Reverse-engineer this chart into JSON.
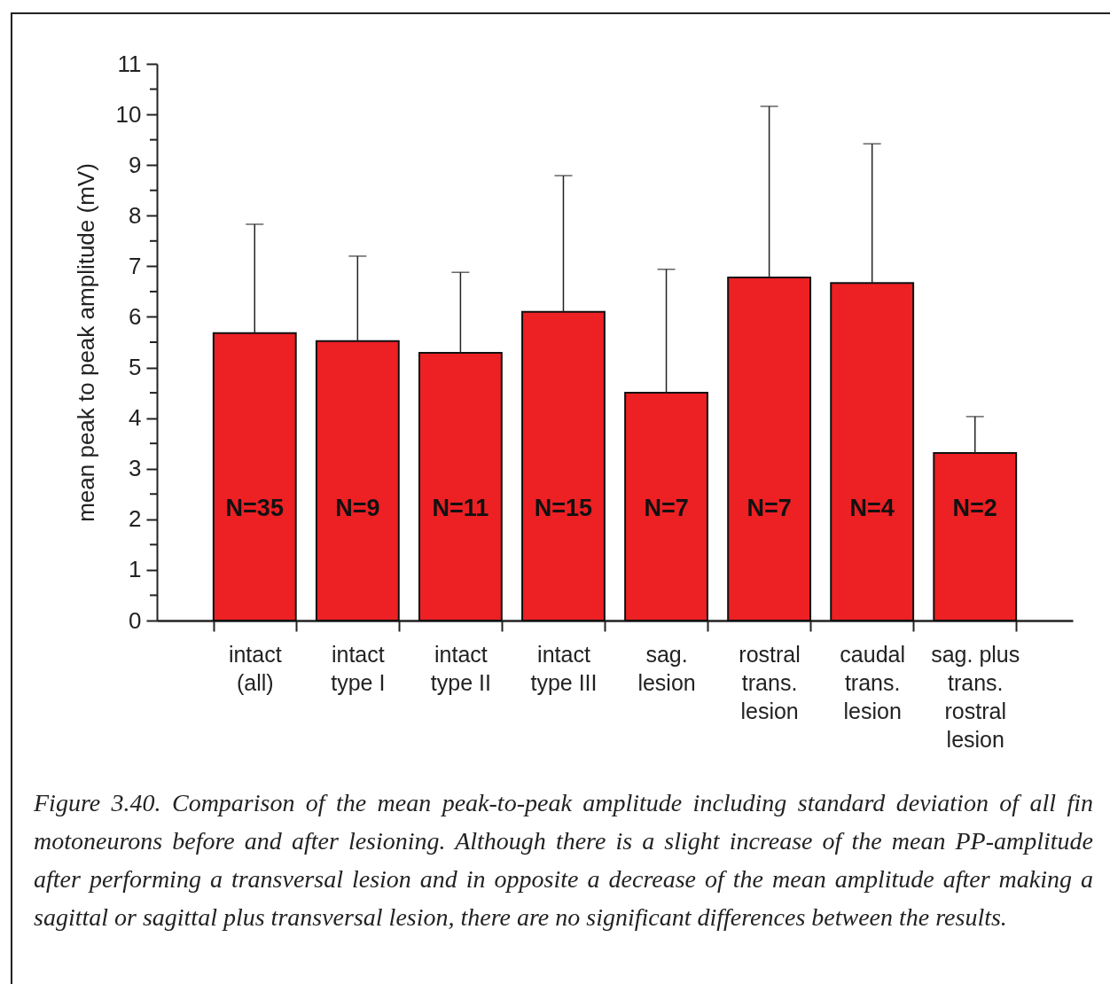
{
  "chart_data": {
    "type": "bar",
    "ylabel": "mean peak to peak amplitude (mV)",
    "categories": [
      "intact\n(all)",
      "intact\ntype I",
      "intact\ntype II",
      "intact\ntype III",
      "sag.\nlesion",
      "rostral\ntrans.\nlesion",
      "caudal\ntrans.\nlesion",
      "sag. plus\ntrans.\nrostral\nlesion"
    ],
    "values": [
      5.68,
      5.52,
      5.29,
      6.1,
      4.5,
      6.78,
      6.67,
      3.31
    ],
    "errors": [
      [
        5.68,
        7.83
      ],
      [
        5.52,
        7.2
      ],
      [
        5.29,
        6.88
      ],
      [
        6.1,
        8.79
      ],
      [
        4.5,
        6.94
      ],
      [
        6.78,
        10.16
      ],
      [
        6.67,
        9.42
      ],
      [
        3.31,
        4.03
      ]
    ],
    "color": "#ed2024",
    "ylim": [
      0,
      11
    ],
    "yticks": [
      0,
      {
        "value": 0.5,
        "label": null
      },
      1,
      {
        "value": 1.5,
        "label": null
      },
      2,
      {
        "value": 2.5,
        "label": null
      },
      3,
      {
        "value": 3.5,
        "label": null
      },
      4,
      {
        "value": 4.5,
        "label": null
      },
      5,
      {
        "value": 5.5,
        "label": null
      },
      6,
      {
        "value": 6.5,
        "label": null
      },
      7,
      {
        "value": 7.5,
        "label": null
      },
      8,
      {
        "value": 8.5,
        "label": null
      },
      9,
      {
        "value": 9.5,
        "label": null
      },
      10,
      {
        "value": 10.5,
        "label": null
      },
      11
    ],
    "grid": false,
    "annotations": [
      "N=35",
      "N=9",
      "N=11",
      "N=15",
      "N=7",
      "N=7",
      "N=4",
      "N=2",
      "Figure 3.40. Comparison of the mean peak-to-peak amplitude including standard deviation of all fin motoneurons before and after lesioning. Although there is a slight increase of the mean PP-amplitude after performing a transversal lesion and in opposite a decrease of the mean amplitude after making a sagittal or sagittal plus transversal lesion, there are no significant differences between the results."
    ]
  }
}
